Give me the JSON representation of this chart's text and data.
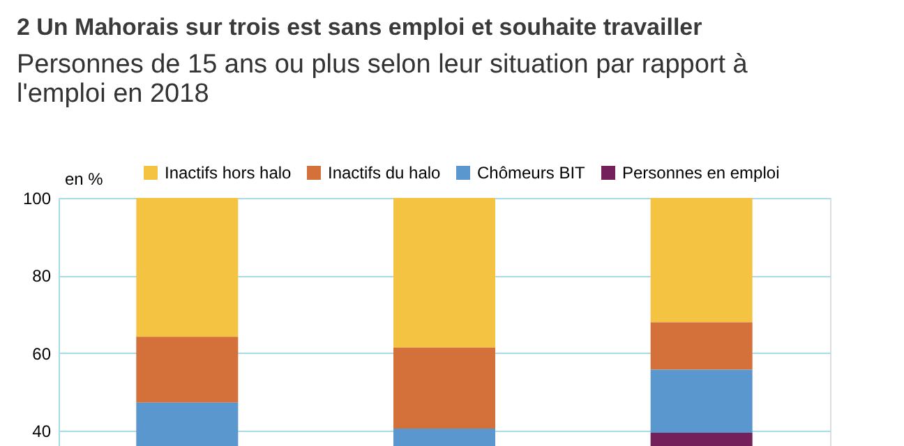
{
  "chart_data": {
    "type": "bar",
    "title": "2 Un Mahorais sur trois est sans emploi et souhaite travailler",
    "subtitle": [
      "Personnes de 15 ans ou plus selon leur situation par rapport à",
      "l'emploi en 2018"
    ],
    "ylabel": "en %",
    "categories": [
      null,
      null,
      null
    ],
    "series": [
      {
        "name": "Inactifs hors halo",
        "color": "#f5c342",
        "values": [
          35.8,
          38.6,
          32.1
        ],
        "base": [
          64.2,
          61.4,
          67.9
        ]
      },
      {
        "name": "Inactifs du halo",
        "color": "#d4703a",
        "values": [
          17,
          20.9,
          12.2
        ],
        "base": [
          47.2,
          40.5,
          55.7
        ]
      },
      {
        "name": "Chômeurs BIT",
        "color": "#5b97cf",
        "values": [
          11.2,
          4.5,
          16.3
        ],
        "base": [
          36,
          36,
          39.4
        ]
      },
      {
        "name": "Personnes en emploi",
        "color": "#74205a",
        "values": [
          null,
          null,
          3.4
        ],
        "base": [
          null,
          null,
          36
        ]
      }
    ],
    "ylim": [
      36,
      100
    ],
    "yticks": [
      40,
      60,
      80,
      100
    ],
    "grid": "y",
    "legend": "top",
    "tick_labels": "y"
  }
}
